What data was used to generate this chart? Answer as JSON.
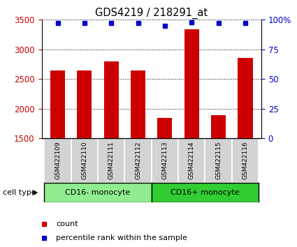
{
  "title": "GDS4219 / 218291_at",
  "samples": [
    "GSM422109",
    "GSM422110",
    "GSM422111",
    "GSM422112",
    "GSM422113",
    "GSM422114",
    "GSM422115",
    "GSM422116"
  ],
  "counts": [
    2640,
    2650,
    2800,
    2640,
    1840,
    3340,
    1890,
    2860
  ],
  "percentiles": [
    97,
    97,
    97,
    97,
    95,
    98,
    97,
    97
  ],
  "groups": [
    {
      "label": "CD16- monocyte",
      "start": 0,
      "end": 4,
      "color": "#90ee90"
    },
    {
      "label": "CD16+ monocyte",
      "start": 4,
      "end": 8,
      "color": "#32cd32"
    }
  ],
  "ylim_left": [
    1500,
    3500
  ],
  "ylim_right": [
    0,
    100
  ],
  "yticks_left": [
    1500,
    2000,
    2500,
    3000,
    3500
  ],
  "yticks_right": [
    0,
    25,
    50,
    75,
    100
  ],
  "bar_color": "#cc0000",
  "dot_color": "#0000cc",
  "background_color": "#ffffff",
  "tick_label_area_color": "#d3d3d3",
  "legend_count_color": "#cc0000",
  "legend_dot_color": "#0000cc",
  "cell_type_label": "cell type",
  "ylabel_left_color": "#cc0000",
  "ylabel_right_color": "#0000cc",
  "group_border_color": "#000000"
}
